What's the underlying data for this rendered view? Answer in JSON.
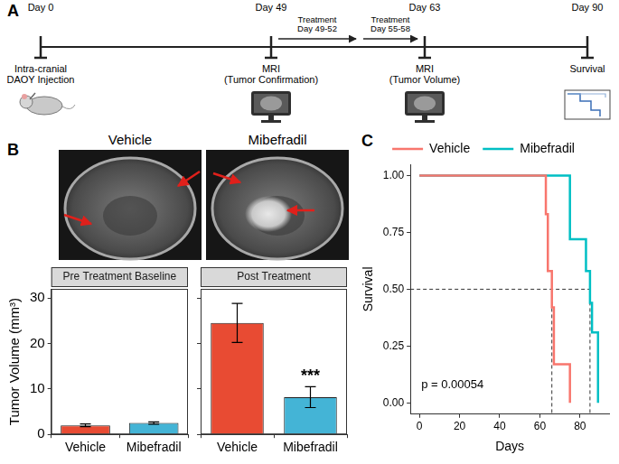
{
  "panel_letters": [
    "A",
    "B",
    "C"
  ],
  "timeline": {
    "events": [
      {
        "day": "Day 0",
        "lines": [
          "Intra-cranial",
          "DAOY Injection"
        ]
      },
      {
        "day": "Day 49",
        "lines": [
          "MRI",
          "(Tumor Confirmation)"
        ]
      },
      {
        "day": "Day 63",
        "lines": [
          "MRI",
          "(Tumor Volume)"
        ]
      },
      {
        "day": "Day 90",
        "lines": [
          "Survival"
        ]
      }
    ],
    "treatments": [
      {
        "lines": [
          "Treatment",
          "Day 49-52"
        ]
      },
      {
        "lines": [
          "Treatment",
          "Day 55-58"
        ]
      }
    ]
  },
  "images": [
    {
      "title": "Vehicle"
    },
    {
      "title": "Mibefradil"
    }
  ],
  "chart_data": [
    {
      "type": "bar",
      "title": "Pre Treatment Baseline",
      "y_label": "Tumor Volume (mm³)",
      "categories": [
        "Vehicle",
        "Mibefradil"
      ],
      "values": [
        2.0,
        2.5
      ],
      "errors": [
        0.3,
        0.25
      ],
      "colors": [
        "#E84B33",
        "#44B4D6"
      ],
      "ylim": [
        0,
        32
      ],
      "yticks": [
        0,
        10,
        20,
        30
      ],
      "grid": false
    },
    {
      "type": "bar",
      "title": "Post Treatment",
      "categories": [
        "Vehicle",
        "Mibefradil"
      ],
      "values": [
        24.5,
        8.2
      ],
      "errors": [
        4.3,
        2.3
      ],
      "colors": [
        "#E84B33",
        "#44B4D6"
      ],
      "ylim": [
        0,
        32
      ],
      "yticks": [
        0,
        10,
        20,
        30
      ],
      "grid": false,
      "tick_labels": "x",
      "annotations": [
        {
          "text": "***",
          "category": "Mibefradil"
        }
      ]
    },
    {
      "type": "step",
      "x_label": "Days",
      "y_label": "Survival",
      "xlim": [
        -4.5,
        94.5
      ],
      "xticks": [
        0,
        20,
        40,
        60,
        80
      ],
      "ylim": [
        -0.05,
        1.05
      ],
      "yticks": [
        {
          "value": 0,
          "label": "0.00"
        },
        {
          "value": 0.25,
          "label": "0.25"
        },
        {
          "value": 0.5,
          "label": "0.50"
        },
        {
          "value": 0.75,
          "label": "0.75"
        },
        {
          "value": 1,
          "label": "1.00"
        }
      ],
      "legend": "top",
      "grid": false,
      "median_survival": 0.5,
      "annotations": [
        {
          "text": "p = 0.00054"
        }
      ],
      "series": [
        {
          "name": "Vehicle",
          "color": "#F8766D",
          "x": [
            0,
            63,
            64,
            66,
            67,
            75
          ],
          "values": [
            1,
            0.83,
            0.58,
            0.42,
            0.17,
            0
          ],
          "median": 66
        },
        {
          "name": "Mibefradil",
          "color": "#00BFC4",
          "x": [
            0,
            75,
            83,
            85,
            86,
            89
          ],
          "values": [
            1,
            0.72,
            0.58,
            0.44,
            0.31,
            0
          ],
          "median": 85
        }
      ]
    }
  ]
}
